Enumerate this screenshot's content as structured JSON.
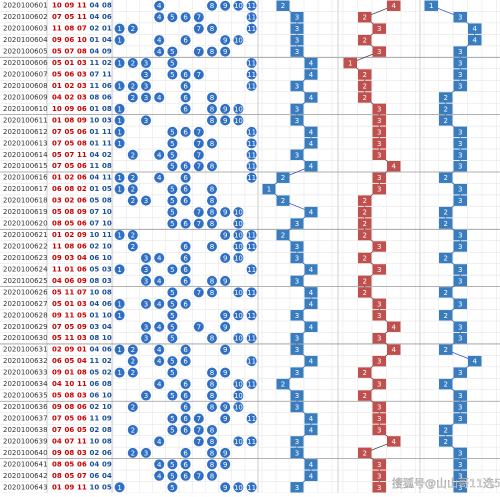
{
  "rows": [
    {
      "period": "2020100601",
      "numbers": [
        "10",
        "09",
        "11",
        "04",
        "08"
      ],
      "balls": [
        4,
        8,
        9,
        10,
        11
      ],
      "g1": 2,
      "g2": 4,
      "g3": 1
    },
    {
      "period": "2020100602",
      "numbers": [
        "07",
        "05",
        "11",
        "04",
        "06"
      ],
      "balls": [
        4,
        5,
        6,
        7,
        11
      ],
      "g1": 3,
      "g2": 2,
      "g3": 3
    },
    {
      "period": "2020100603",
      "numbers": [
        "11",
        "08",
        "07",
        "02",
        "01"
      ],
      "balls": [
        1,
        2,
        7,
        8,
        11
      ],
      "g1": 3,
      "g2": 3,
      "g3": 4
    },
    {
      "period": "2020100604",
      "numbers": [
        "09",
        "06",
        "10",
        "01",
        "04"
      ],
      "balls": [
        1,
        4,
        6,
        9,
        10
      ],
      "g1": 3,
      "g2": 2,
      "g3": 4
    },
    {
      "period": "2020100605",
      "numbers": [
        "05",
        "07",
        "08",
        "04",
        "09"
      ],
      "balls": [
        4,
        5,
        7,
        8,
        9
      ],
      "g1": 3,
      "g2": 3,
      "g3": 3
    },
    {
      "period": "2020100606",
      "numbers": [
        "05",
        "01",
        "03",
        "11",
        "02"
      ],
      "balls": [
        1,
        2,
        3,
        5,
        11
      ],
      "g1": 4,
      "g2": 1,
      "g3": 3
    },
    {
      "period": "2020100607",
      "numbers": [
        "05",
        "06",
        "03",
        "07",
        "11"
      ],
      "balls": [
        3,
        5,
        6,
        7,
        11
      ],
      "g1": 4,
      "g2": 2,
      "g3": 3
    },
    {
      "period": "2020100608",
      "numbers": [
        "01",
        "02",
        "03",
        "11",
        "06"
      ],
      "balls": [
        1,
        2,
        3,
        6,
        11
      ],
      "g1": 3,
      "g2": 2,
      "g3": 3
    },
    {
      "period": "2020100609",
      "numbers": [
        "04",
        "02",
        "03",
        "08",
        "06"
      ],
      "balls": [
        2,
        3,
        4,
        6,
        8
      ],
      "g1": 4,
      "g2": 2,
      "g3": 2
    },
    {
      "period": "2020100610",
      "numbers": [
        "10",
        "09",
        "06",
        "01",
        "08"
      ],
      "balls": [
        1,
        6,
        8,
        9,
        10
      ],
      "g1": 3,
      "g2": 3,
      "g3": 2
    },
    {
      "period": "2020100611",
      "numbers": [
        "01",
        "08",
        "09",
        "10",
        "03"
      ],
      "balls": [
        1,
        3,
        8,
        9,
        10
      ],
      "g1": 3,
      "g2": 3,
      "g3": 2
    },
    {
      "period": "2020100612",
      "numbers": [
        "07",
        "05",
        "06",
        "01",
        "11"
      ],
      "balls": [
        1,
        5,
        6,
        7,
        11
      ],
      "g1": 4,
      "g2": 3,
      "g3": 3
    },
    {
      "period": "2020100613",
      "numbers": [
        "07",
        "05",
        "08",
        "01",
        "11"
      ],
      "balls": [
        1,
        5,
        7,
        8,
        11
      ],
      "g1": 4,
      "g2": 3,
      "g3": 3
    },
    {
      "period": "2020100614",
      "numbers": [
        "05",
        "07",
        "11",
        "04",
        "02"
      ],
      "balls": [
        2,
        4,
        5,
        7,
        11
      ],
      "g1": 3,
      "g2": 3,
      "g3": 3
    },
    {
      "period": "2020100615",
      "numbers": [
        "07",
        "05",
        "06",
        "11",
        "08"
      ],
      "balls": [
        5,
        6,
        7,
        8,
        11
      ],
      "g1": 4,
      "g2": 4,
      "g3": 3
    },
    {
      "period": "2020100616",
      "numbers": [
        "01",
        "02",
        "06",
        "04",
        "11"
      ],
      "balls": [
        1,
        2,
        4,
        6,
        11
      ],
      "g1": 2,
      "g2": 3,
      "g3": 2
    },
    {
      "period": "2020100617",
      "numbers": [
        "06",
        "08",
        "02",
        "01",
        "05"
      ],
      "balls": [
        1,
        2,
        5,
        6,
        8
      ],
      "g1": 1,
      "g2": 3,
      "g3": 3
    },
    {
      "period": "2020100618",
      "numbers": [
        "03",
        "02",
        "06",
        "05",
        "08"
      ],
      "balls": [
        2,
        3,
        5,
        6,
        8
      ],
      "g1": 2,
      "g2": 2,
      "g3": 3
    },
    {
      "period": "2020100619",
      "numbers": [
        "05",
        "08",
        "09",
        "07",
        "10"
      ],
      "balls": [
        5,
        7,
        8,
        9,
        10
      ],
      "g1": 4,
      "g2": 2,
      "g3": 2
    },
    {
      "period": "2020100620",
      "numbers": [
        "08",
        "05",
        "06",
        "07",
        "10"
      ],
      "balls": [
        5,
        6,
        7,
        8,
        10
      ],
      "g1": 3,
      "g2": 2,
      "g3": 2
    },
    {
      "period": "2020100621",
      "numbers": [
        "01",
        "02",
        "09",
        "10",
        "11"
      ],
      "balls": [
        1,
        2,
        9,
        10,
        11
      ],
      "g1": 2,
      "g2": 2,
      "g3": 3
    },
    {
      "period": "2020100622",
      "numbers": [
        "11",
        "08",
        "06",
        "02",
        "10"
      ],
      "balls": [
        2,
        6,
        8,
        10,
        11
      ],
      "g1": 3,
      "g2": 3,
      "g3": 3
    },
    {
      "period": "2020100623",
      "numbers": [
        "09",
        "03",
        "04",
        "06",
        "10"
      ],
      "balls": [
        3,
        4,
        6,
        9,
        10
      ],
      "g1": 3,
      "g2": 2,
      "g3": 2
    },
    {
      "period": "2020100624",
      "numbers": [
        "11",
        "01",
        "06",
        "05",
        "03"
      ],
      "balls": [
        1,
        3,
        5,
        6,
        11
      ],
      "g1": 4,
      "g2": 3,
      "g3": 3
    },
    {
      "period": "2020100625",
      "numbers": [
        "04",
        "06",
        "09",
        "08",
        "03"
      ],
      "balls": [
        3,
        4,
        6,
        8,
        9
      ],
      "g1": 3,
      "g2": 2,
      "g3": 3
    },
    {
      "period": "2020100626",
      "numbers": [
        "05",
        "11",
        "07",
        "10",
        "08"
      ],
      "balls": [
        5,
        7,
        8,
        10,
        11
      ],
      "g1": 4,
      "g2": 2,
      "g3": 2
    },
    {
      "period": "2020100627",
      "numbers": [
        "05",
        "01",
        "03",
        "04",
        "06"
      ],
      "balls": [
        1,
        3,
        4,
        5,
        6
      ],
      "g1": 4,
      "g2": 3,
      "g3": 3
    },
    {
      "period": "2020100628",
      "numbers": [
        "09",
        "11",
        "05",
        "01",
        "10"
      ],
      "balls": [
        1,
        5,
        9,
        10,
        11
      ],
      "g1": 3,
      "g2": 3,
      "g3": 2
    },
    {
      "period": "2020100629",
      "numbers": [
        "07",
        "05",
        "09",
        "03",
        "04"
      ],
      "balls": [
        3,
        4,
        5,
        7,
        9
      ],
      "g1": 4,
      "g2": 4,
      "g3": 3
    },
    {
      "period": "2020100630",
      "numbers": [
        "05",
        "11",
        "03",
        "08",
        "10"
      ],
      "balls": [
        3,
        5,
        8,
        10,
        11
      ],
      "g1": 3,
      "g2": 3,
      "g3": 3
    },
    {
      "period": "2020100631",
      "numbers": [
        "02",
        "09",
        "01",
        "04",
        "06"
      ],
      "balls": [
        1,
        2,
        4,
        6,
        9
      ],
      "g1": 3,
      "g2": 4,
      "g3": 2
    },
    {
      "period": "2020100632",
      "numbers": [
        "06",
        "05",
        "04",
        "11",
        "02"
      ],
      "balls": [
        2,
        4,
        5,
        6,
        11
      ],
      "g1": 4,
      "g2": 3,
      "g3": 4
    },
    {
      "period": "2020100633",
      "numbers": [
        "09",
        "01",
        "08",
        "05",
        "02"
      ],
      "balls": [
        1,
        2,
        5,
        8,
        9
      ],
      "g1": 3,
      "g2": 2,
      "g3": 3
    },
    {
      "period": "2020100634",
      "numbers": [
        "04",
        "10",
        "11",
        "06",
        "08"
      ],
      "balls": [
        4,
        6,
        8,
        10,
        11
      ],
      "g1": 2,
      "g2": 3,
      "g3": 2
    },
    {
      "period": "2020100635",
      "numbers": [
        "05",
        "08",
        "03",
        "06",
        "10"
      ],
      "balls": [
        3,
        5,
        6,
        8,
        10
      ],
      "g1": 3,
      "g2": 2,
      "g3": 3
    },
    {
      "period": "2020100636",
      "numbers": [
        "09",
        "08",
        "06",
        "02",
        "10"
      ],
      "balls": [
        2,
        6,
        8,
        9,
        10
      ],
      "g1": 3,
      "g2": 3,
      "g3": 3
    },
    {
      "period": "2020100637",
      "numbers": [
        "07",
        "05",
        "06",
        "11",
        "09"
      ],
      "balls": [
        5,
        6,
        7,
        9,
        11
      ],
      "g1": 4,
      "g2": 3,
      "g3": 3
    },
    {
      "period": "2020100638",
      "numbers": [
        "07",
        "06",
        "05",
        "02",
        "08"
      ],
      "balls": [
        2,
        5,
        6,
        7,
        8
      ],
      "g1": 4,
      "g2": 3,
      "g3": 2
    },
    {
      "period": "2020100639",
      "numbers": [
        "04",
        "07",
        "11",
        "10",
        "08"
      ],
      "balls": [
        4,
        7,
        8,
        10,
        11
      ],
      "g1": 3,
      "g2": 4,
      "g3": 2
    },
    {
      "period": "2020100640",
      "numbers": [
        "09",
        "08",
        "03",
        "02",
        "06"
      ],
      "balls": [
        2,
        3,
        6,
        8,
        9
      ],
      "g1": 3,
      "g2": 2,
      "g3": 3
    },
    {
      "period": "2020100641",
      "numbers": [
        "08",
        "05",
        "06",
        "04",
        "09"
      ],
      "balls": [
        4,
        5,
        6,
        8,
        9
      ],
      "g1": 4,
      "g2": 3,
      "g3": 3
    },
    {
      "period": "2020100642",
      "numbers": [
        "08",
        "05",
        "07",
        "06",
        "04"
      ],
      "balls": [
        4,
        5,
        6,
        7,
        8
      ],
      "g1": 4,
      "g2": 3,
      "g3": 3
    },
    {
      "period": "2020100643",
      "numbers": [
        "01",
        "09",
        "11",
        "10",
        "05"
      ],
      "balls": [
        1,
        5,
        9,
        10,
        11
      ],
      "g1": 3,
      "g2": 3,
      "g3": 3
    }
  ],
  "watermark": "搜狐号@山山哥11选5"
}
